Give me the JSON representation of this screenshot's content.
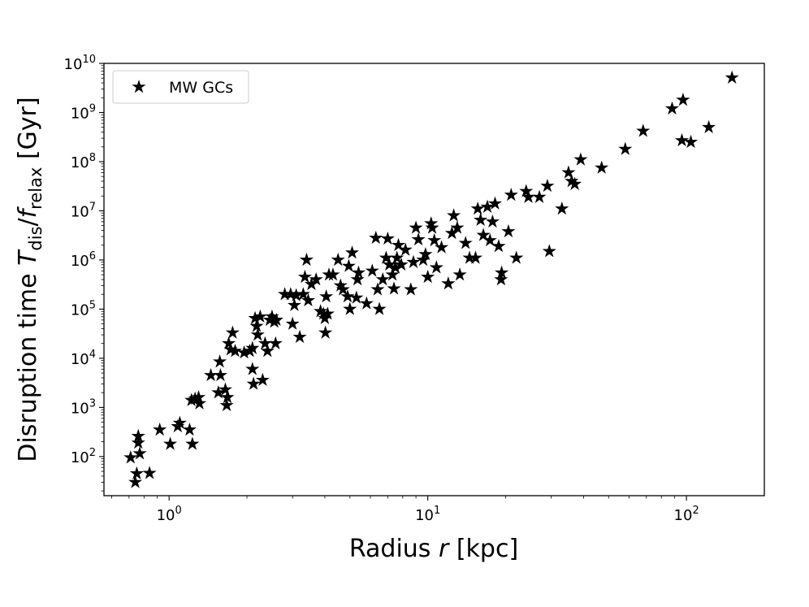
{
  "chart_data": {
    "type": "scatter",
    "title": "",
    "xlabel_main": "Radius ",
    "xlabel_var": "r",
    "xlabel_unit": " [kpc]",
    "ylabel_main": "Disruption time ",
    "ylabel_var1": "T",
    "ylabel_sub1": "dis",
    "ylabel_slash": "/",
    "ylabel_var2": "f",
    "ylabel_sub2": "relax",
    "ylabel_unit": " [Gyr]",
    "xscale": "log",
    "yscale": "log",
    "xlim": [
      0.56,
      200
    ],
    "ylim": [
      16,
      10000000000
    ],
    "x_tick_exponents": [
      0,
      1,
      2
    ],
    "y_tick_exponents": [
      2,
      3,
      4,
      5,
      6,
      7,
      8,
      9,
      10
    ],
    "tick_base": "10",
    "legend_position": "upper-left",
    "series": [
      {
        "name": "MW GCs",
        "marker": "star",
        "color": "#000000",
        "points": [
          [
            0.71,
            95
          ],
          [
            0.74,
            30
          ],
          [
            0.75,
            45
          ],
          [
            0.76,
            260
          ],
          [
            0.76,
            190
          ],
          [
            0.77,
            115
          ],
          [
            0.84,
            46
          ],
          [
            0.92,
            350
          ],
          [
            1.01,
            180
          ],
          [
            1.08,
            410
          ],
          [
            1.1,
            480
          ],
          [
            1.2,
            350
          ],
          [
            1.22,
            1400
          ],
          [
            1.23,
            180
          ],
          [
            1.26,
            1500
          ],
          [
            1.3,
            1600
          ],
          [
            1.31,
            1200
          ],
          [
            1.45,
            4500
          ],
          [
            1.55,
            2000
          ],
          [
            1.57,
            8500
          ],
          [
            1.58,
            4500
          ],
          [
            1.65,
            2300
          ],
          [
            1.67,
            1100
          ],
          [
            1.68,
            1600
          ],
          [
            1.7,
            20000
          ],
          [
            1.73,
            15000
          ],
          [
            1.76,
            33000
          ],
          [
            1.8,
            14000
          ],
          [
            1.95,
            13000
          ],
          [
            2.05,
            14000
          ],
          [
            2.1,
            6000
          ],
          [
            2.1,
            16000
          ],
          [
            2.12,
            3000
          ],
          [
            2.15,
            65000
          ],
          [
            2.18,
            45000
          ],
          [
            2.2,
            30000
          ],
          [
            2.25,
            70000
          ],
          [
            2.3,
            3600
          ],
          [
            2.35,
            20000
          ],
          [
            2.4,
            14000
          ],
          [
            2.45,
            60000
          ],
          [
            2.5,
            70000
          ],
          [
            2.55,
            55000
          ],
          [
            2.58,
            20000
          ],
          [
            2.6,
            60000
          ],
          [
            2.8,
            200000
          ],
          [
            2.95,
            200000
          ],
          [
            3.0,
            50000
          ],
          [
            3.05,
            120000
          ],
          [
            3.1,
            190000
          ],
          [
            3.2,
            27000
          ],
          [
            3.3,
            200000
          ],
          [
            3.35,
            450000
          ],
          [
            3.4,
            1000000
          ],
          [
            3.45,
            150000
          ],
          [
            3.55,
            320000
          ],
          [
            3.7,
            400000
          ],
          [
            3.85,
            90000
          ],
          [
            3.95,
            80000
          ],
          [
            4.0,
            65000
          ],
          [
            4.02,
            33000
          ],
          [
            4.05,
            180000
          ],
          [
            4.1,
            80000
          ],
          [
            4.15,
            500000
          ],
          [
            4.3,
            500000
          ],
          [
            4.5,
            1000000
          ],
          [
            4.6,
            300000
          ],
          [
            4.7,
            250000
          ],
          [
            4.9,
            180000
          ],
          [
            4.95,
            750000
          ],
          [
            5.0,
            100000
          ],
          [
            5.1,
            1400000
          ],
          [
            5.3,
            170000
          ],
          [
            5.35,
            400000
          ],
          [
            5.4,
            550000
          ],
          [
            5.8,
            130000
          ],
          [
            6.1,
            600000
          ],
          [
            6.3,
            2800000
          ],
          [
            6.4,
            250000
          ],
          [
            6.5,
            100000
          ],
          [
            6.7,
            400000
          ],
          [
            6.9,
            1100000
          ],
          [
            7.0,
            2700000
          ],
          [
            7.1,
            800000
          ],
          [
            7.3,
            500000
          ],
          [
            7.4,
            260000
          ],
          [
            7.5,
            700000
          ],
          [
            7.6,
            1100000
          ],
          [
            7.7,
            2000000
          ],
          [
            7.9,
            800000
          ],
          [
            8.2,
            1600000
          ],
          [
            8.6,
            250000
          ],
          [
            8.8,
            900000
          ],
          [
            9.0,
            4500000
          ],
          [
            9.2,
            2600000
          ],
          [
            9.6,
            1000000
          ],
          [
            9.8,
            1300000
          ],
          [
            10.0,
            450000
          ],
          [
            10.3,
            5500000
          ],
          [
            10.4,
            4500000
          ],
          [
            10.6,
            2500000
          ],
          [
            10.8,
            700000
          ],
          [
            11.3,
            1800000
          ],
          [
            12.0,
            330000
          ],
          [
            12.4,
            3500000
          ],
          [
            12.6,
            8000000
          ],
          [
            13.0,
            4500000
          ],
          [
            13.3,
            500000
          ],
          [
            14.0,
            2200000
          ],
          [
            14.5,
            1100000
          ],
          [
            15.3,
            1100000
          ],
          [
            15.6,
            11000000
          ],
          [
            16.0,
            6500000
          ],
          [
            16.4,
            3200000
          ],
          [
            17.0,
            12000000
          ],
          [
            17.4,
            2500000
          ],
          [
            17.8,
            6000000
          ],
          [
            18.2,
            14000000
          ],
          [
            18.8,
            1900000
          ],
          [
            19.2,
            400000
          ],
          [
            19.3,
            550000
          ],
          [
            20.5,
            3800000
          ],
          [
            21.0,
            21000000
          ],
          [
            22.0,
            1100000
          ],
          [
            24.0,
            25000000
          ],
          [
            24.5,
            19000000
          ],
          [
            27.0,
            19000000
          ],
          [
            29.0,
            32000000
          ],
          [
            29.5,
            1500000
          ],
          [
            33.0,
            11000000
          ],
          [
            35.0,
            60000000
          ],
          [
            36.0,
            40000000
          ],
          [
            37.0,
            35000000
          ],
          [
            39.0,
            110000000
          ],
          [
            47.0,
            75000000
          ],
          [
            58.0,
            180000000
          ],
          [
            68.0,
            420000000
          ],
          [
            88.0,
            1200000000
          ],
          [
            96.0,
            270000000
          ],
          [
            97.0,
            1800000000
          ],
          [
            104.0,
            250000000
          ],
          [
            122.0,
            500000000
          ],
          [
            150.0,
            5100000000
          ]
        ]
      }
    ]
  }
}
